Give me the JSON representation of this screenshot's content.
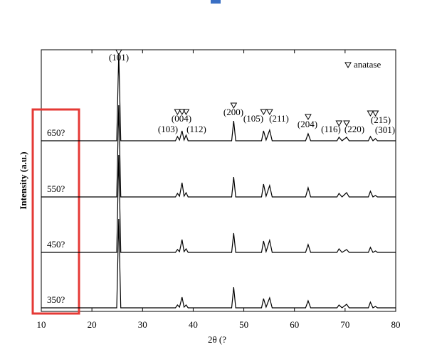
{
  "chart_data": {
    "type": "line",
    "xlabel": "2θ (?",
    "ylabel": "Intensity (a.u.)",
    "xlim": [
      10,
      80
    ],
    "xticks": [
      10,
      20,
      30,
      40,
      50,
      60,
      70,
      80
    ],
    "ylim": [
      0,
      368
    ],
    "legend": "anatase",
    "color": "#000000",
    "x": [
      10,
      24.9,
      25.3,
      25.7,
      36.5,
      36.9,
      37.3,
      37.8,
      38.2,
      38.6,
      39.0,
      47.6,
      48.0,
      48.4,
      53.5,
      53.9,
      54.4,
      55.1,
      55.6,
      62.2,
      62.7,
      63.2,
      68.4,
      68.8,
      69.4,
      70.3,
      70.8,
      74.6,
      75.0,
      75.5,
      76.0,
      76.4,
      80
    ],
    "series": [
      {
        "name": "650?",
        "values": [
          240,
          240,
          363,
          240,
          240,
          246,
          241,
          254,
          241,
          248,
          240,
          240,
          268,
          240,
          240,
          254,
          241,
          255,
          240,
          240,
          250,
          240,
          240,
          245,
          240,
          245,
          240,
          240,
          246,
          240,
          243,
          240,
          240
        ]
      },
      {
        "name": "550?",
        "values": [
          161,
          161,
          290,
          161,
          161,
          166,
          162,
          181,
          162,
          167,
          161,
          161,
          189,
          161,
          161,
          179,
          162,
          177,
          161,
          161,
          174,
          161,
          161,
          166,
          161,
          167,
          161,
          161,
          169,
          161,
          163,
          161,
          161
        ]
      },
      {
        "name": "450?",
        "values": [
          83,
          83,
          220,
          83,
          83,
          87,
          84,
          101,
          84,
          88,
          83,
          83,
          110,
          83,
          83,
          99,
          84,
          100,
          83,
          83,
          94,
          83,
          83,
          88,
          83,
          87,
          83,
          83,
          90,
          83,
          85,
          83,
          83
        ]
      },
      {
        "name": "350?",
        "values": [
          5,
          5,
          130,
          5,
          5,
          9,
          6,
          20,
          6,
          9,
          5,
          5,
          34,
          5,
          5,
          18,
          6,
          19,
          5,
          5,
          15,
          5,
          5,
          9,
          5,
          10,
          5,
          5,
          13,
          5,
          7,
          5,
          5
        ]
      }
    ],
    "annotations": [
      {
        "label": "(101)",
        "x": 25.3
      },
      {
        "label": "(103)",
        "x": 36.9
      },
      {
        "label": "(004)",
        "x": 37.8
      },
      {
        "label": "(112)",
        "x": 38.6
      },
      {
        "label": "(200)",
        "x": 48.0
      },
      {
        "label": "(105)",
        "x": 53.9
      },
      {
        "label": "(211)",
        "x": 55.1
      },
      {
        "label": "(204)",
        "x": 62.7
      },
      {
        "label": "(116)",
        "x": 68.8
      },
      {
        "label": "(220)",
        "x": 70.3
      },
      {
        "label": "(215)",
        "x": 75.0
      },
      {
        "label": "(301)",
        "x": 76.0
      }
    ]
  }
}
